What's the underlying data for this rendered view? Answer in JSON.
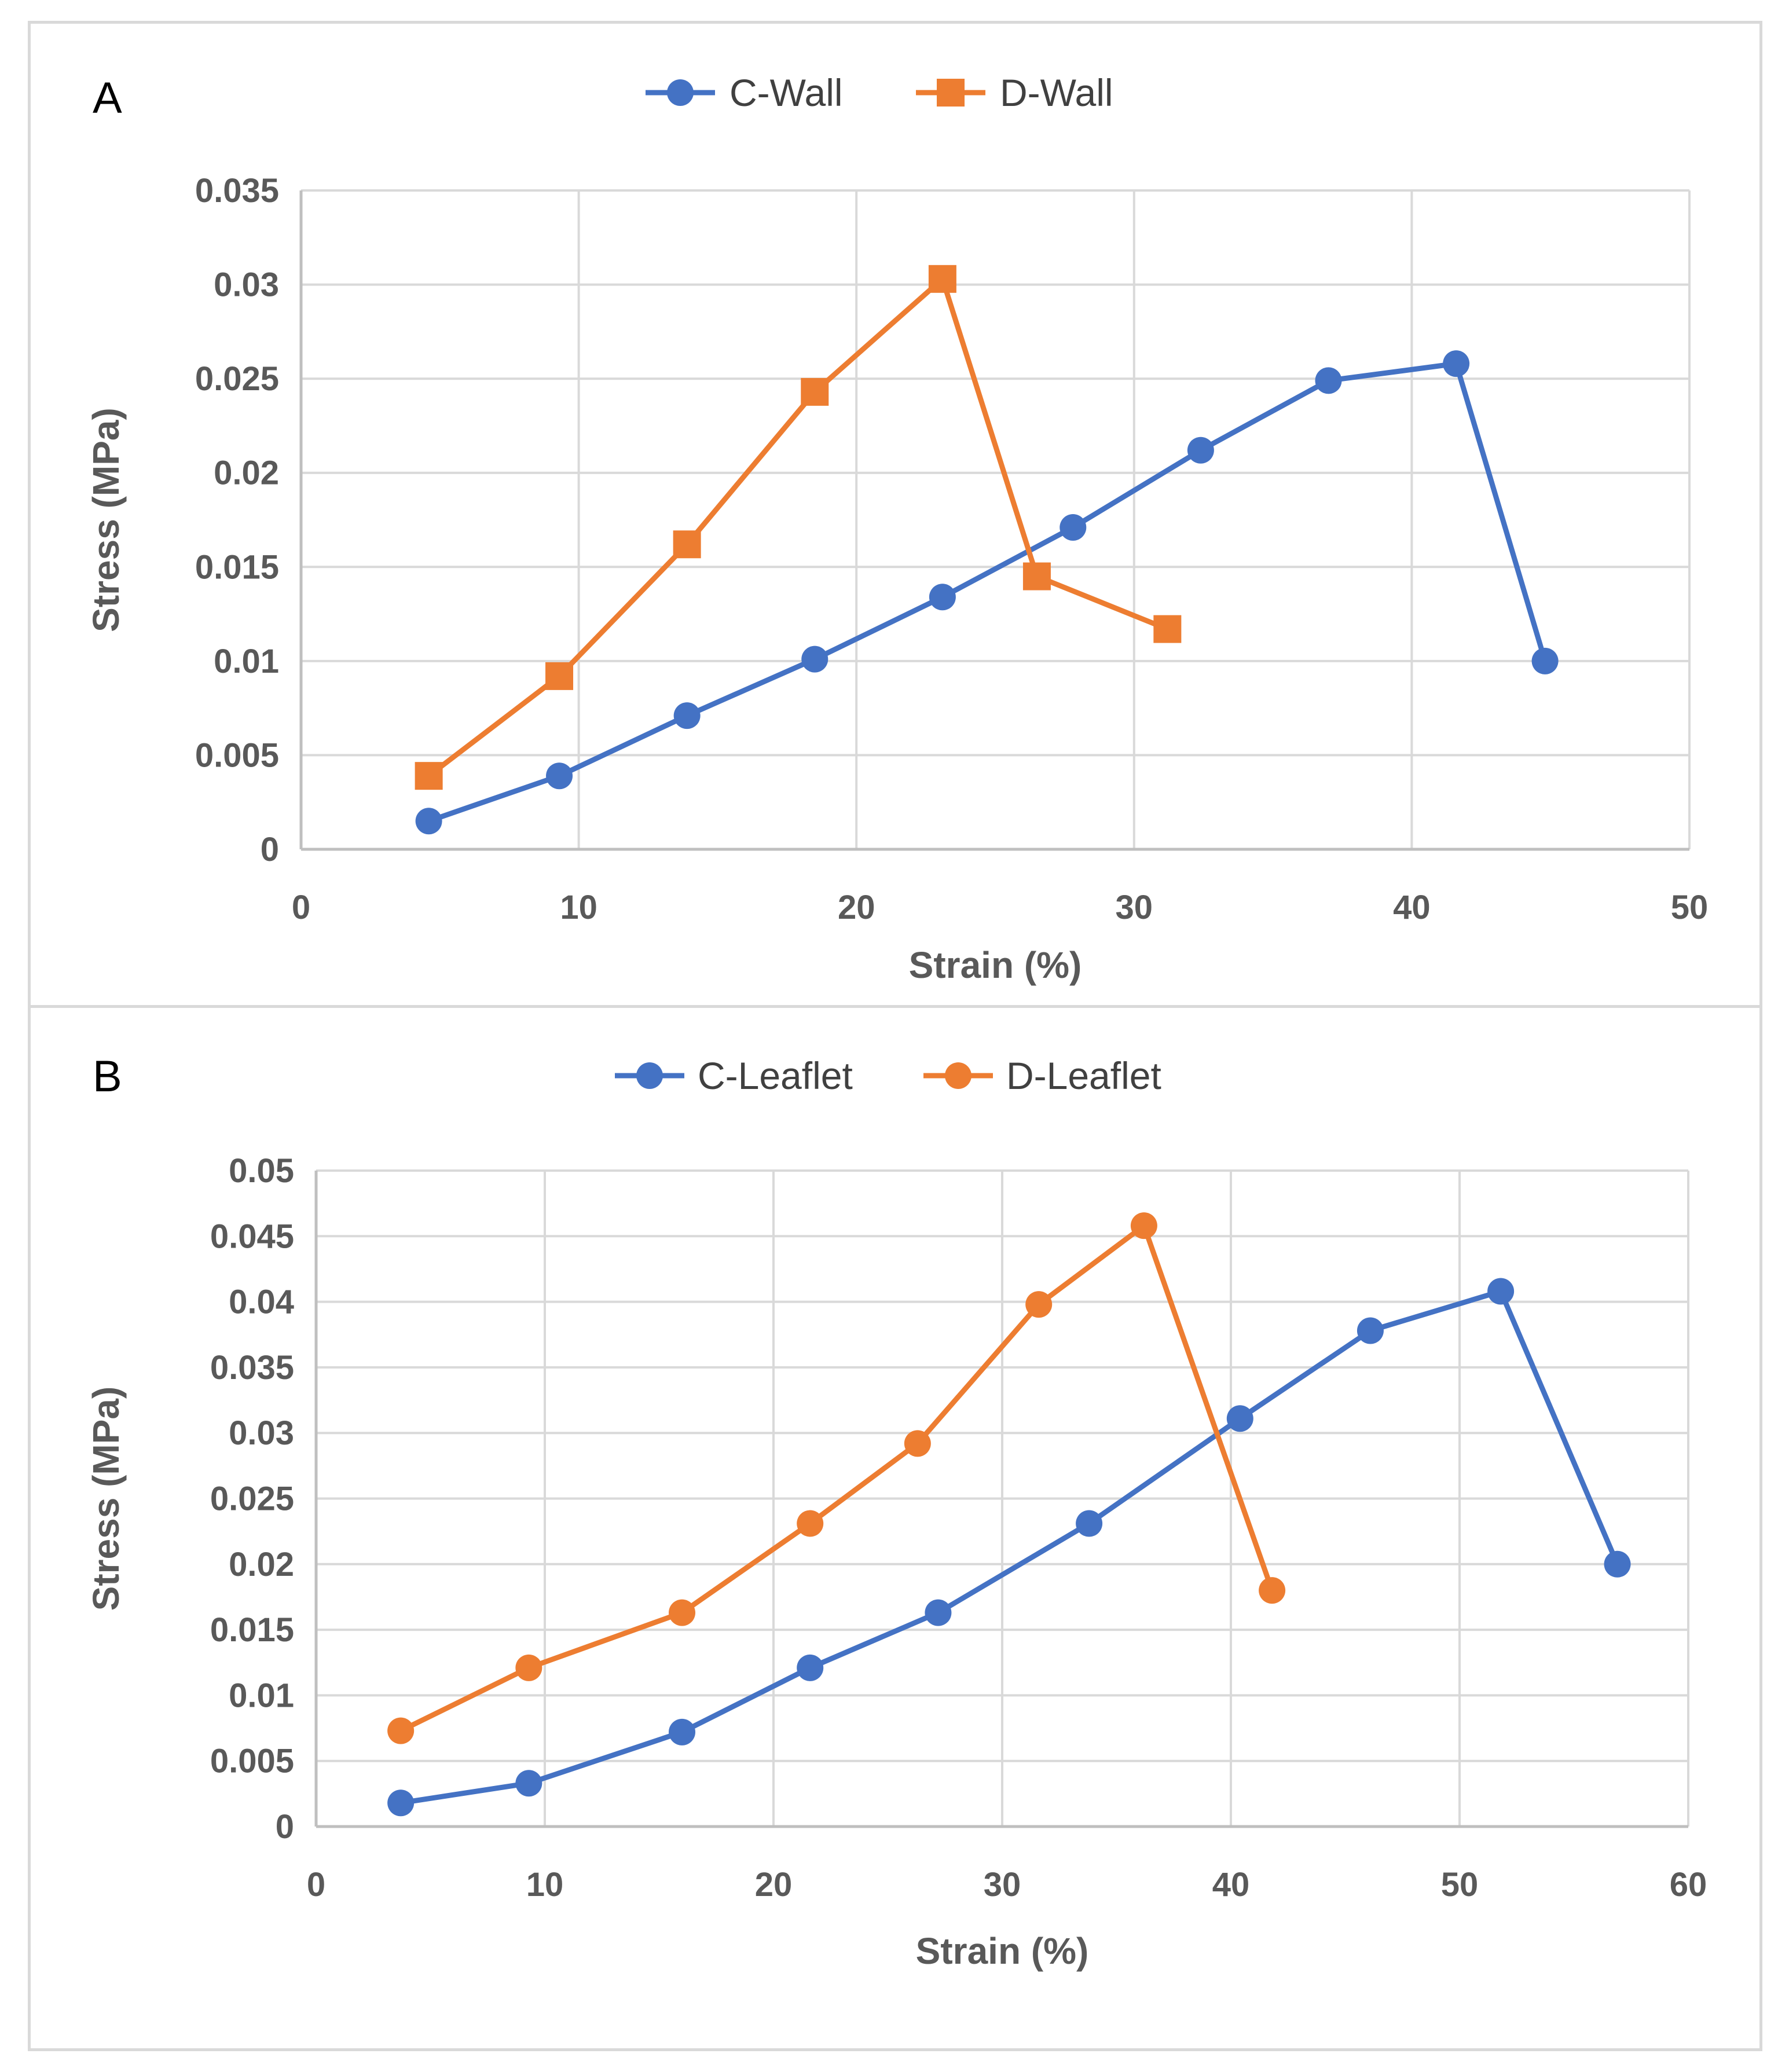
{
  "chart_data": [
    {
      "id": "A",
      "type": "line",
      "panel_label": "A",
      "xlabel": "Strain (%)",
      "ylabel": "Stress (MPa)",
      "xlim": [
        0,
        50
      ],
      "ylim": [
        0,
        0.035
      ],
      "xticks": [
        0,
        10,
        20,
        30,
        40,
        50
      ],
      "xtick_labels": [
        "0",
        "10",
        "20",
        "30",
        "40",
        "50"
      ],
      "yticks": [
        0,
        0.005,
        0.01,
        0.015,
        0.02,
        0.025,
        0.03,
        0.035
      ],
      "ytick_labels": [
        "0",
        "0.005",
        "0.01",
        "0.015",
        "0.02",
        "0.025",
        "0.03",
        "0.035"
      ],
      "grid": true,
      "legend_position": "top-center",
      "series": [
        {
          "name": "C-Wall",
          "color": "#4472C4",
          "marker": "circle",
          "x": [
            4.6,
            9.3,
            13.9,
            18.5,
            23.1,
            27.8,
            32.4,
            37.0,
            41.6,
            44.8
          ],
          "y": [
            0.0015,
            0.0039,
            0.0071,
            0.0101,
            0.0134,
            0.0171,
            0.0212,
            0.0249,
            0.0258,
            0.01
          ]
        },
        {
          "name": "D-Wall",
          "color": "#ED7D31",
          "marker": "square",
          "x": [
            4.6,
            9.3,
            13.9,
            18.5,
            23.1,
            26.5,
            31.2
          ],
          "y": [
            0.0039,
            0.0092,
            0.0162,
            0.0243,
            0.0303,
            0.0145,
            0.0117
          ]
        }
      ]
    },
    {
      "id": "B",
      "type": "line",
      "panel_label": "B",
      "xlabel": "Strain (%)",
      "ylabel": "Stress (MPa)",
      "xlim": [
        0,
        60
      ],
      "ylim": [
        0,
        0.05
      ],
      "xticks": [
        0,
        10,
        20,
        30,
        40,
        50,
        60
      ],
      "xtick_labels": [
        "0",
        "10",
        "20",
        "30",
        "40",
        "50",
        "60"
      ],
      "yticks": [
        0,
        0.005,
        0.01,
        0.015,
        0.02,
        0.025,
        0.03,
        0.035,
        0.04,
        0.045,
        0.05
      ],
      "ytick_labels": [
        "0",
        "0.005",
        "0.01",
        "0.015",
        "0.02",
        "0.025",
        "0.03",
        "0.035",
        "0.04",
        "0.045",
        "0.05"
      ],
      "grid": true,
      "legend_position": "top-center",
      "series": [
        {
          "name": "C-Leaflet",
          "color": "#4472C4",
          "marker": "circle",
          "x": [
            3.7,
            9.3,
            16.0,
            21.6,
            27.2,
            33.8,
            40.4,
            46.1,
            51.8,
            56.9
          ],
          "y": [
            0.0018,
            0.0033,
            0.0072,
            0.0121,
            0.0163,
            0.0231,
            0.0311,
            0.0378,
            0.0408,
            0.02
          ]
        },
        {
          "name": "D-Leaflet",
          "color": "#ED7D31",
          "marker": "circle",
          "x": [
            3.7,
            9.3,
            16.0,
            21.6,
            26.3,
            31.6,
            36.2,
            41.8
          ],
          "y": [
            0.0073,
            0.0121,
            0.0163,
            0.0231,
            0.0292,
            0.0398,
            0.0458,
            0.018
          ]
        }
      ]
    }
  ]
}
